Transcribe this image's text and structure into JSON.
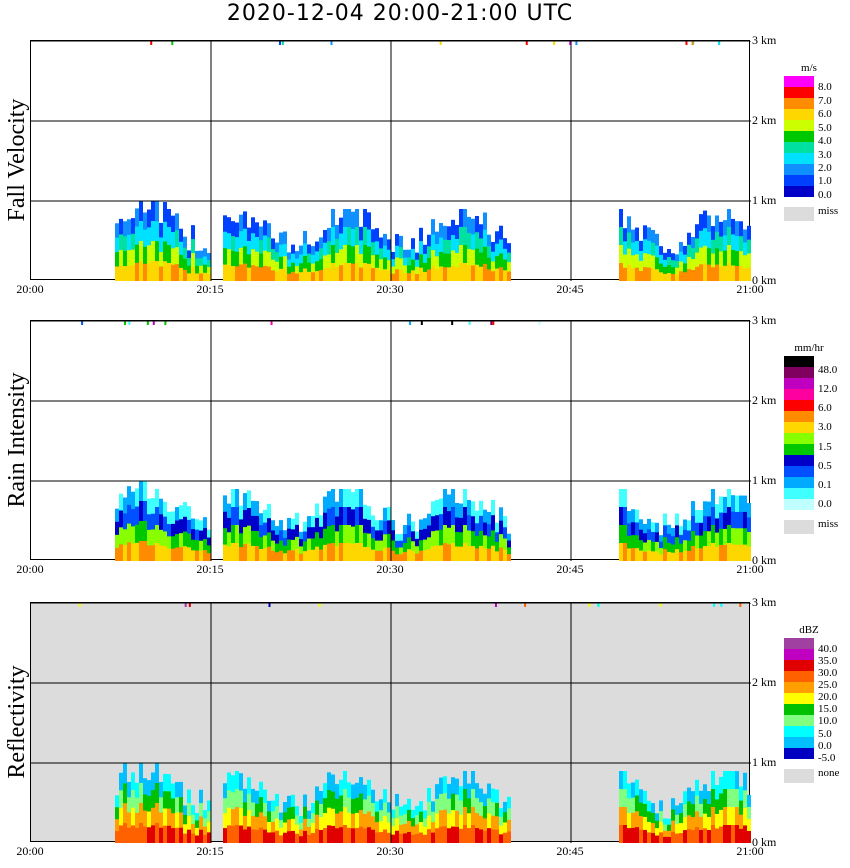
{
  "title": "2020-12-04   20:00-21:00 UTC",
  "x_tick_labels": [
    "20:00",
    "20:15",
    "20:30",
    "20:45",
    "21:00"
  ],
  "y_tick_labels": [
    "3 km",
    "2 km",
    "1 km",
    "0 km"
  ],
  "panels": [
    {
      "label": "Fall Velocity",
      "unit": "m/s",
      "missing_label": "miss",
      "missing_color": "#dcdcdc",
      "colorbar_labels": [
        "8.0",
        "7.0",
        "6.0",
        "5.0",
        "4.0",
        "3.0",
        "2.0",
        "1.0",
        "0.0"
      ],
      "colorbar_colors": [
        "#ff00ff",
        "#ff0000",
        "#ff8c00",
        "#ffd700",
        "#ccff00",
        "#00c800",
        "#00e0a0",
        "#00e0ff",
        "#1090ff",
        "#0040ff",
        "#0000c8"
      ],
      "background": "white"
    },
    {
      "label": "Rain Intensity",
      "unit": "mm/hr",
      "missing_label": "miss",
      "missing_color": "#dcdcdc",
      "colorbar_labels": [
        "48.0",
        "12.0",
        "6.0",
        "3.0",
        "1.5",
        "0.5",
        "0.1",
        "0.0"
      ],
      "colorbar_colors": [
        "#000000",
        "#800060",
        "#c000c0",
        "#ff00a0",
        "#ff0000",
        "#ff8c00",
        "#ffd700",
        "#88ff00",
        "#00c800",
        "#0000c8",
        "#0050ff",
        "#00aaff",
        "#40ffff",
        "#c0ffff"
      ],
      "background": "white"
    },
    {
      "label": "Reflectivity",
      "unit": "dBZ",
      "missing_label": "none",
      "missing_color": "#dcdcdc",
      "colorbar_labels": [
        "40.0",
        "35.0",
        "30.0",
        "25.0",
        "20.0",
        "15.0",
        "10.0",
        "5.0",
        "0.0",
        "-5.0"
      ],
      "colorbar_colors": [
        "#a040a0",
        "#c000c0",
        "#e00000",
        "#ff6000",
        "#ffa000",
        "#ffff00",
        "#00c000",
        "#80ff80",
        "#00ffff",
        "#00c0ff",
        "#0000c0"
      ],
      "background": "gray"
    }
  ],
  "chart_data": {
    "type": "heatmap",
    "x_range": [
      "20:00",
      "21:00"
    ],
    "y_range_km": [
      0,
      3
    ],
    "gridlines_x": [
      "20:15",
      "20:30",
      "20:45"
    ],
    "gridlines_y_km": [
      1,
      2,
      3
    ],
    "precip_segments": [
      {
        "start": "20:07",
        "end": "20:15",
        "top_km": 1.0
      },
      {
        "start": "20:16",
        "end": "20:40",
        "top_km": 0.9
      },
      {
        "start": "20:49",
        "end": "21:00",
        "top_km": 0.9
      }
    ],
    "grid": true
  }
}
